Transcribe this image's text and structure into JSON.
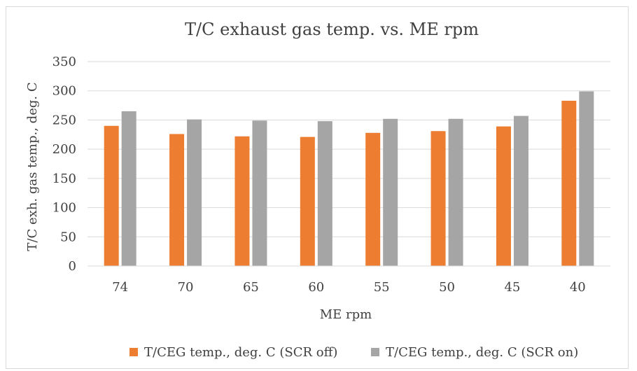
{
  "chart_data": {
    "type": "bar",
    "title": "T/C exhaust gas temp. vs. ME rpm",
    "xlabel": "ME rpm",
    "ylabel": "T/C exh. gas temp., deg. C",
    "categories": [
      "74",
      "70",
      "65",
      "60",
      "55",
      "50",
      "45",
      "40"
    ],
    "series": [
      {
        "name": "T/CEG temp., deg. C (SCR off)",
        "color": "#ed7d31",
        "values": [
          240,
          226,
          222,
          221,
          228,
          231,
          239,
          283
        ]
      },
      {
        "name": "T/CEG temp., deg. C (SCR on)",
        "color": "#a5a5a5",
        "values": [
          265,
          251,
          249,
          248,
          252,
          252,
          257,
          299
        ]
      }
    ],
    "ylim": [
      0,
      350
    ],
    "yticks": [
      0,
      50,
      100,
      150,
      200,
      250,
      300,
      350
    ],
    "grid": true,
    "legend": "bottom"
  }
}
